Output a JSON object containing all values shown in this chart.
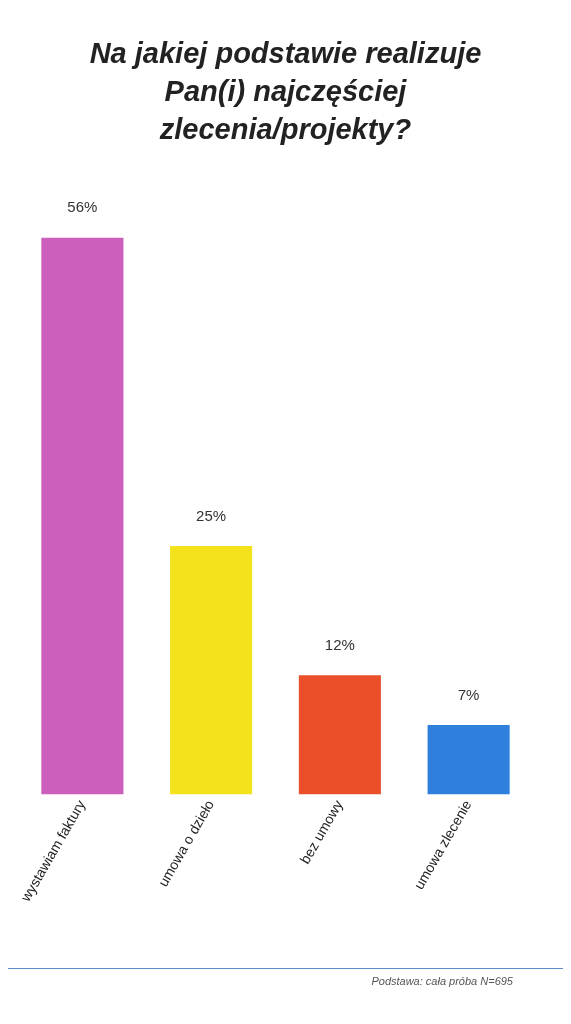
{
  "chart_data": {
    "type": "bar",
    "title": "Na jakiej podstawie realizuje Pan(i) najczęściej zlecenia/projekty?",
    "categories": [
      "wystawiam faktury",
      "umowa o dzieło",
      "bez umowy",
      "umowa zlecenie"
    ],
    "values": [
      56,
      25,
      12,
      7
    ],
    "colors": [
      "#cc5ebc",
      "#f4e21c",
      "#ea4f2a",
      "#2f80dc"
    ],
    "value_labels": [
      "56%",
      "25%",
      "12%",
      "7%"
    ],
    "grid": false,
    "legend": false,
    "annotations": [
      "Podstawa: cała próba N=695"
    ]
  }
}
